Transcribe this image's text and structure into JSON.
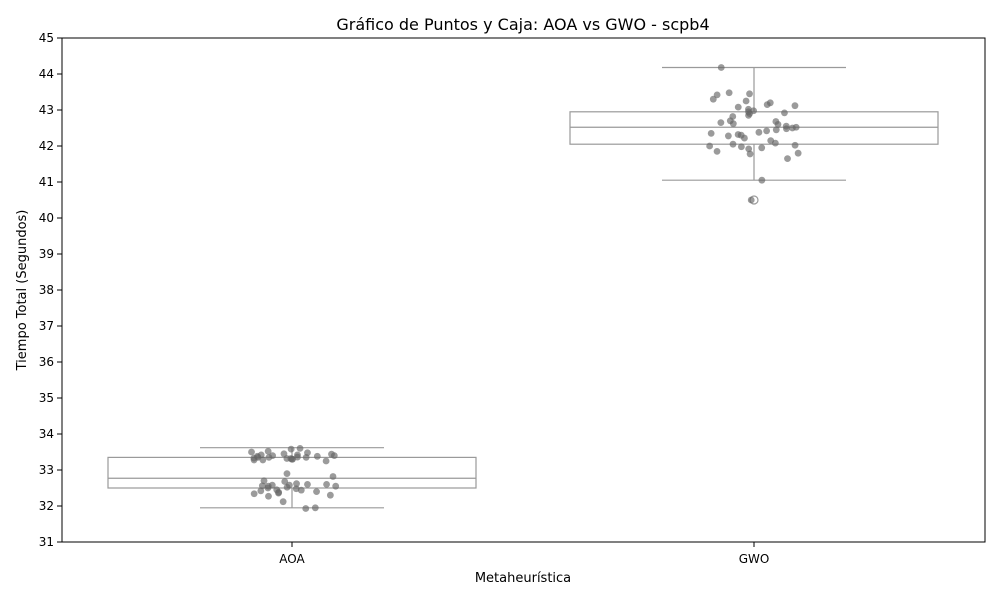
{
  "chart_data": {
    "type": "box",
    "title": "Gráfico de Puntos y Caja: AOA vs GWO - scpb4",
    "xlabel": "Metaheurística",
    "ylabel": "Tiempo Total (Segundos)",
    "categories": [
      "AOA",
      "GWO"
    ],
    "ylim": [
      31,
      45
    ],
    "yticks": [
      31,
      32,
      33,
      34,
      35,
      36,
      37,
      38,
      39,
      40,
      41,
      42,
      43,
      44,
      45
    ],
    "grid": false,
    "colors": {
      "box_edge": "#9a9a9a",
      "point": "#666666",
      "axis": "#000000"
    },
    "boxes": [
      {
        "category": "AOA",
        "whisker_low": 31.95,
        "q1": 32.5,
        "median": 32.77,
        "q3": 33.35,
        "whisker_high": 33.62,
        "outliers": []
      },
      {
        "category": "GWO",
        "whisker_low": 41.05,
        "q1": 42.05,
        "median": 42.52,
        "q3": 42.95,
        "whisker_high": 44.18,
        "outliers": [
          40.5
        ]
      }
    ],
    "points": [
      {
        "category": "AOA",
        "values": [
          33.58,
          33.42,
          33.38,
          33.35,
          33.32,
          33.3,
          33.28,
          33.25,
          33.6,
          33.45,
          33.4,
          33.38,
          33.35,
          33.33,
          33.3,
          33.52,
          33.48,
          33.42,
          33.36,
          33.32,
          33.28,
          33.5,
          33.44,
          33.4,
          33.35,
          32.9,
          32.82,
          32.7,
          32.68,
          32.62,
          32.6,
          32.58,
          32.56,
          32.55,
          32.52,
          32.5,
          32.48,
          32.45,
          32.42,
          32.4,
          32.38,
          32.36,
          32.34,
          32.3,
          32.27,
          32.6,
          32.58,
          32.55,
          32.44,
          32.12,
          31.95,
          31.93
        ]
      },
      {
        "category": "GWO",
        "values": [
          44.18,
          43.48,
          43.45,
          43.42,
          43.3,
          43.25,
          43.2,
          43.15,
          43.12,
          43.08,
          43.02,
          42.98,
          42.95,
          42.92,
          42.9,
          42.85,
          42.82,
          42.7,
          42.68,
          42.65,
          42.62,
          42.6,
          42.55,
          42.52,
          42.5,
          42.48,
          42.45,
          42.42,
          42.38,
          42.35,
          42.32,
          42.3,
          42.28,
          42.22,
          42.15,
          42.08,
          42.05,
          42.02,
          42.0,
          41.98,
          41.95,
          41.92,
          41.85,
          41.8,
          41.78,
          41.65,
          41.05,
          40.5
        ]
      }
    ]
  }
}
